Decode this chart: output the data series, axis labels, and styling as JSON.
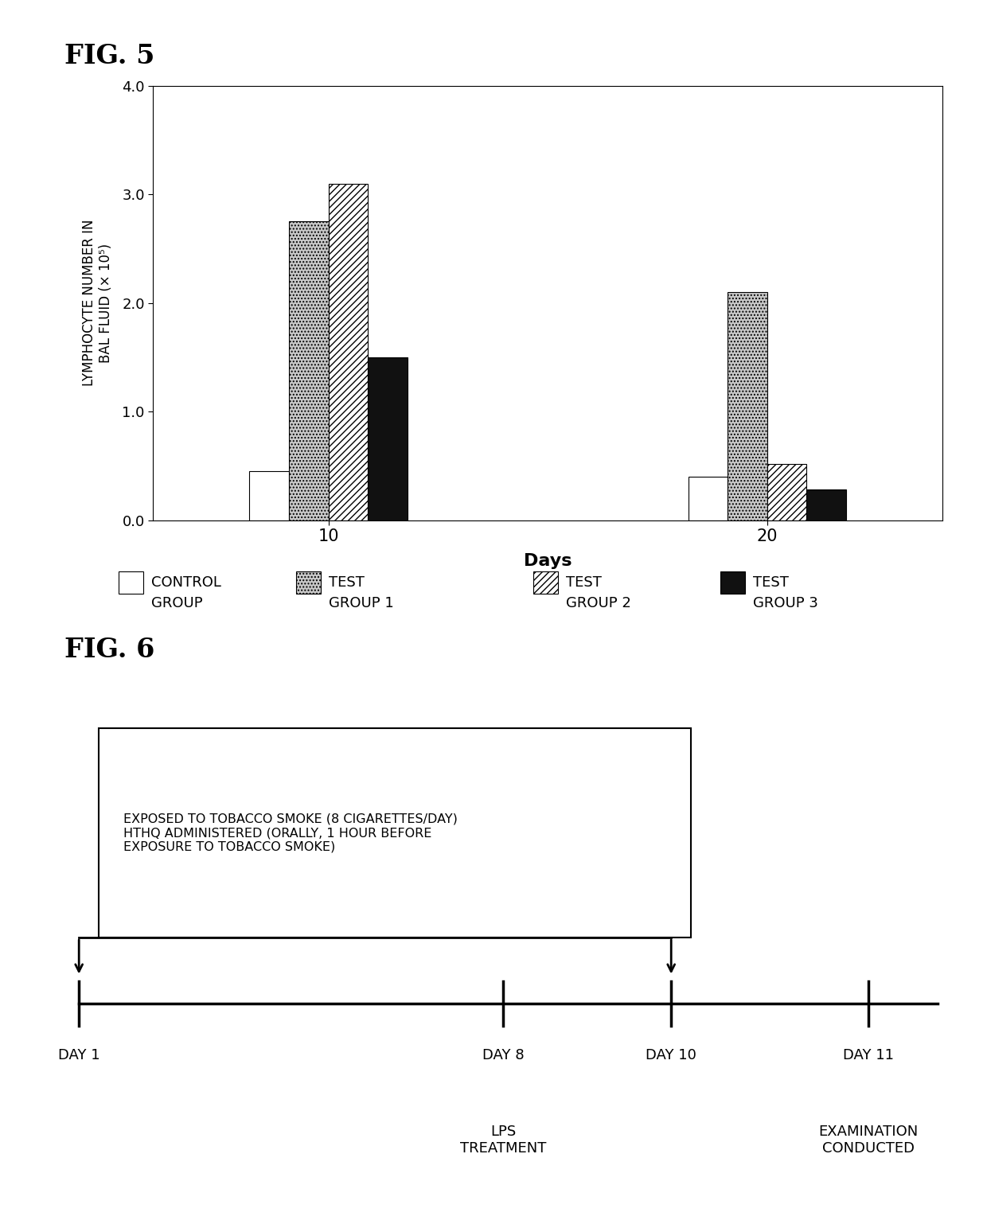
{
  "fig5_title": "FIG. 5",
  "fig6_title": "FIG. 6",
  "bar_groups": [
    {
      "day": 10,
      "values": [
        0.45,
        2.75,
        3.1,
        1.5
      ]
    },
    {
      "day": 20,
      "values": [
        0.4,
        2.1,
        0.52,
        0.28
      ]
    }
  ],
  "ylabel": "LYMPHOCYTE NUMBER IN\nBAL FLUID (× 10⁵)",
  "xlabel": "Days",
  "yticks": [
    0.0,
    1.0,
    2.0,
    3.0,
    4.0
  ],
  "ytick_labels": [
    "0.0",
    "1.0",
    "2.0",
    "3.0",
    "4.0"
  ],
  "ylim": [
    0.0,
    4.0
  ],
  "bar_facecolors": [
    "white",
    "#c8c8c8",
    "white",
    "#111111"
  ],
  "bar_hatches": [
    "",
    "....",
    "////",
    ""
  ],
  "legend_labels": [
    "CONTROL\nGROUP",
    "TEST\nGROUP 1",
    "TEST\nGROUP 2",
    "TEST\nGROUP 3"
  ],
  "timeline_text": "EXPOSED TO TOBACCO SMOKE (8 CIGARETTES/DAY)\nHTHQ ADMINISTERED (ORALLY, 1 HOUR BEFORE\nEXPOSURE TO TOBACCO SMOKE)",
  "day_labels": [
    "DAY 1",
    "DAY 8",
    "DAY 10",
    "DAY 11"
  ],
  "day_sublabels": [
    "",
    "LPS\nTREATMENT",
    "",
    "EXAMINATION\nCONDUCTED"
  ],
  "background_color": "#ffffff"
}
